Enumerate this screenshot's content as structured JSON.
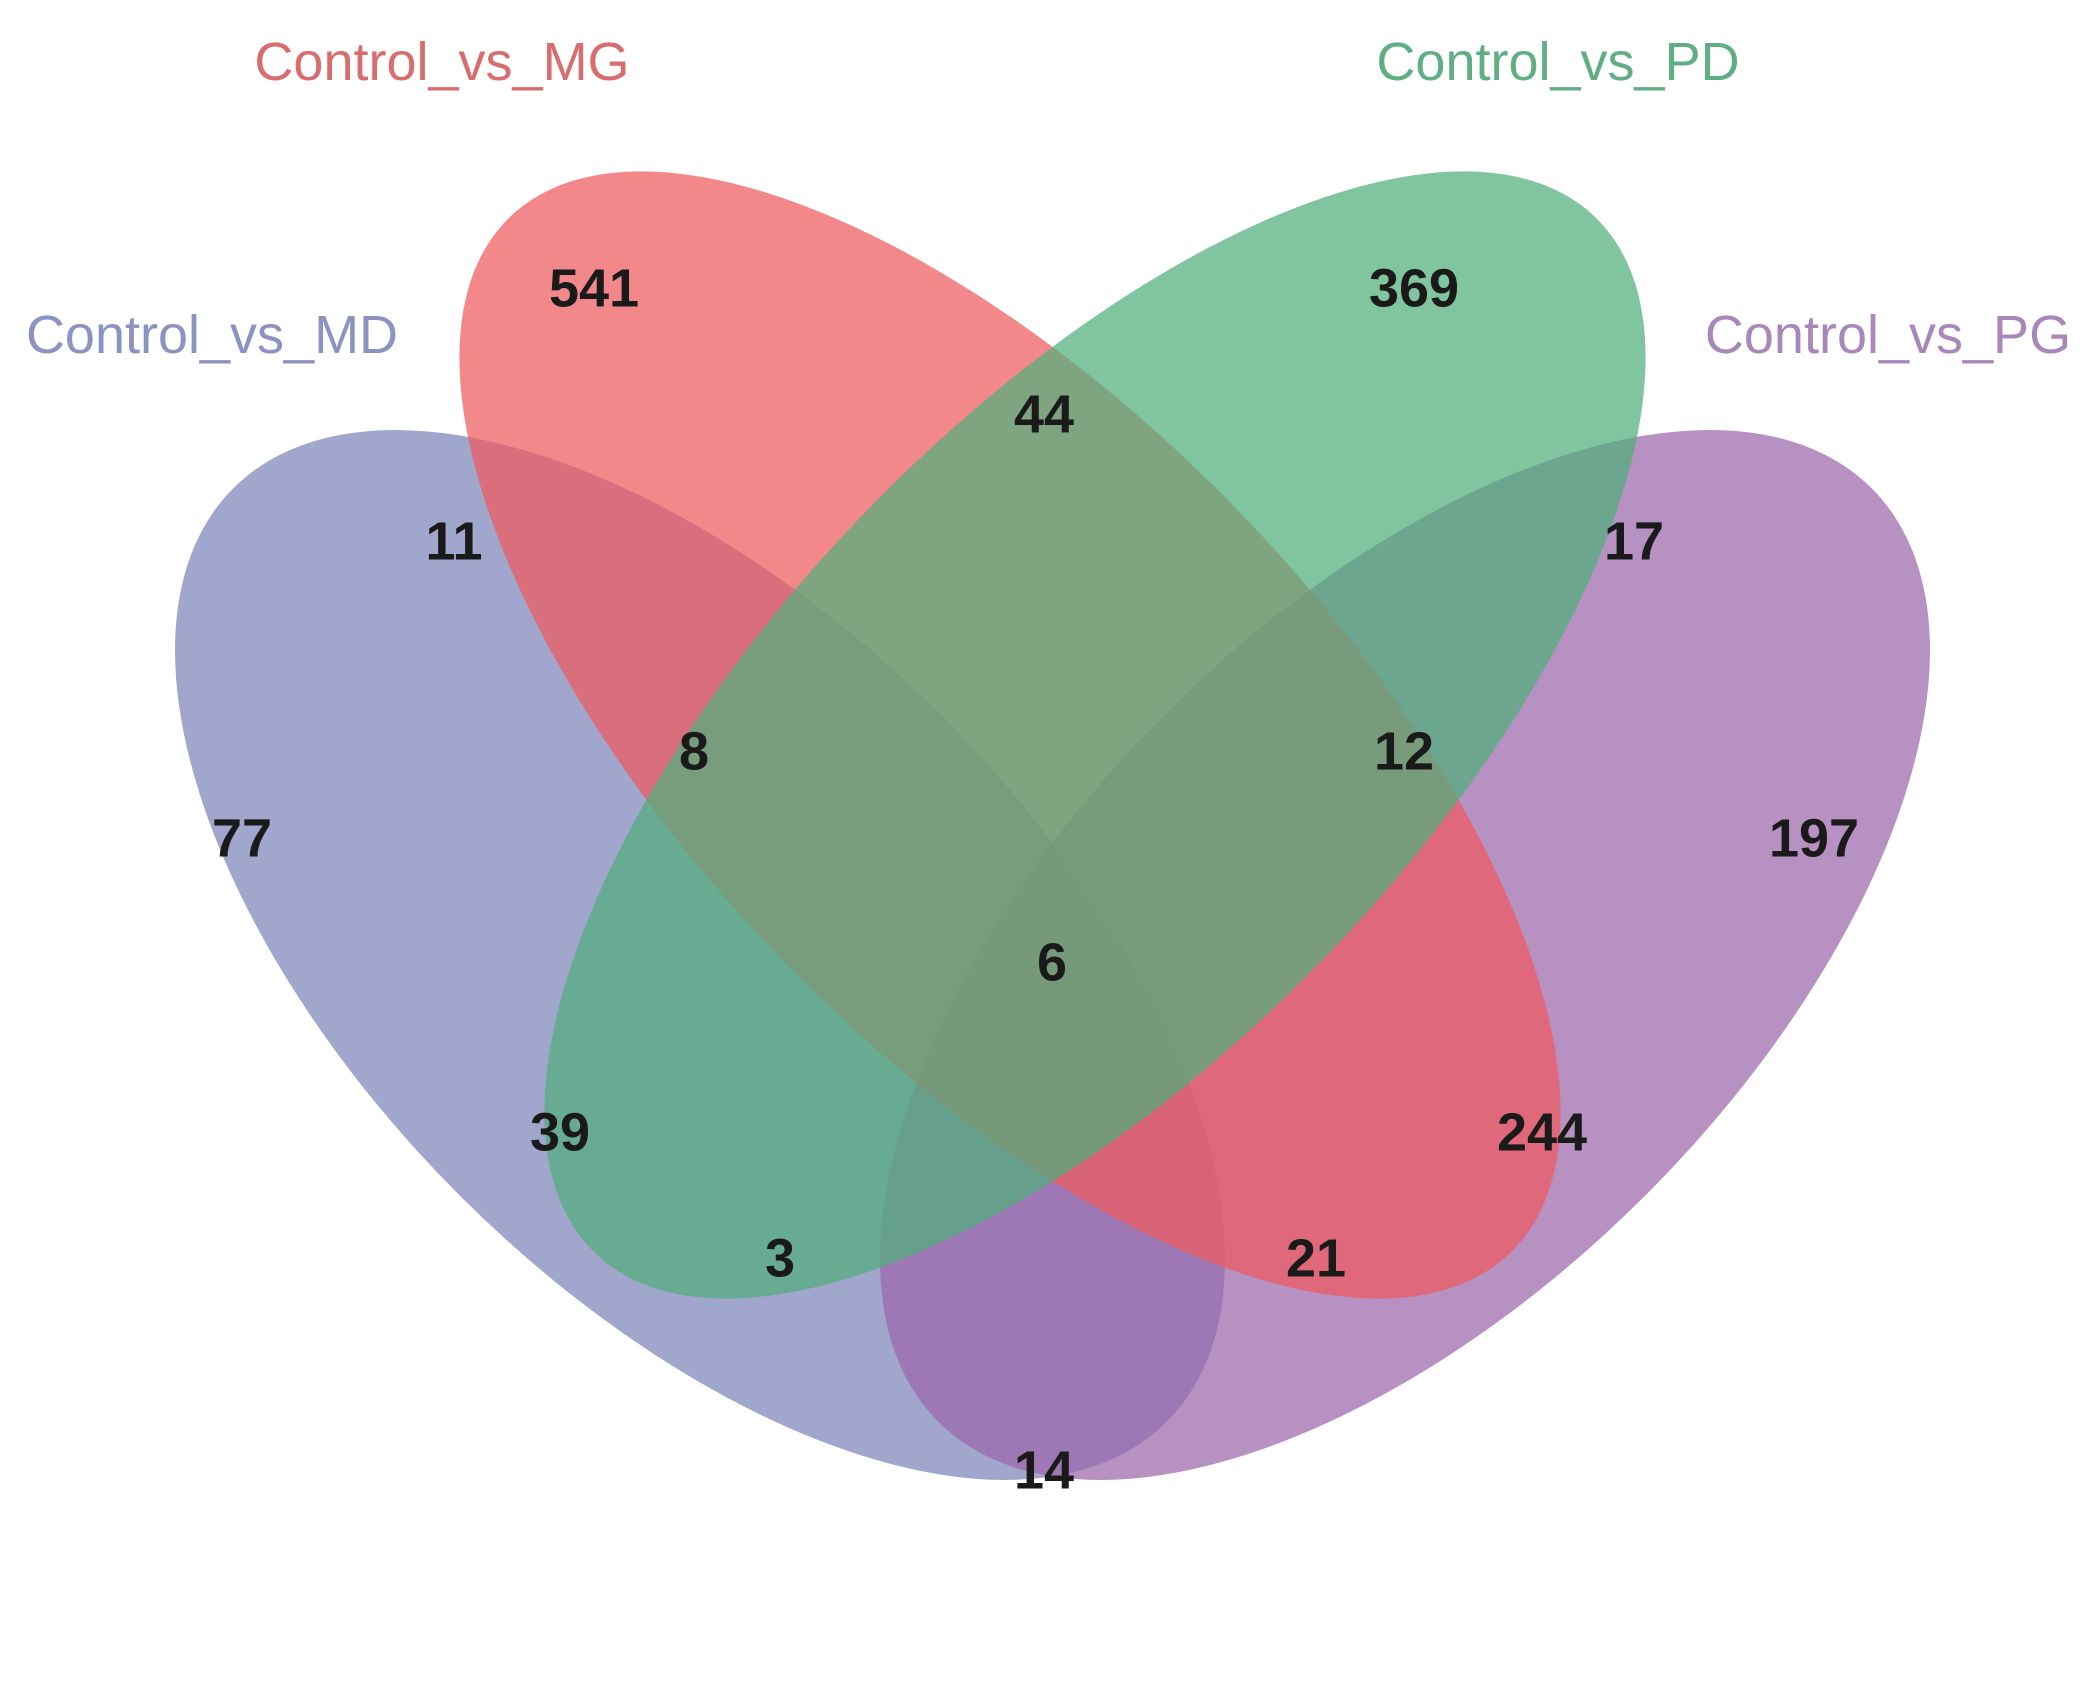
{
  "diagram": {
    "type": "venn-4-set",
    "sets": [
      {
        "key": "MD",
        "name": "Control_vs_MD",
        "color": "#7C83B8",
        "label_color": "#8C92C2"
      },
      {
        "key": "MG",
        "name": "Control_vs_MG",
        "color": "#EE5A5E",
        "label_color": "#D96C6E"
      },
      {
        "key": "PD",
        "name": "Control_vs_PD",
        "color": "#50AE7C",
        "label_color": "#5FAE84"
      },
      {
        "key": "PG",
        "name": "Control_vs_PG",
        "color": "#9B67AA",
        "label_color": "#A888B9"
      }
    ],
    "regions": [
      {
        "id": "MD",
        "value": "77"
      },
      {
        "id": "MG",
        "value": "541"
      },
      {
        "id": "PD",
        "value": "369"
      },
      {
        "id": "PG",
        "value": "197"
      },
      {
        "id": "MD_MG",
        "value": "11"
      },
      {
        "id": "MG_PD",
        "value": "44"
      },
      {
        "id": "PD_PG",
        "value": "17"
      },
      {
        "id": "MD_MG_PD",
        "value": "8"
      },
      {
        "id": "MG_PD_PG",
        "value": "12"
      },
      {
        "id": "MD_MG_PD_PG",
        "value": "6"
      },
      {
        "id": "MD_PD",
        "value": "39"
      },
      {
        "id": "MG_PG",
        "value": "244"
      },
      {
        "id": "MD_PD_PG",
        "value": "3"
      },
      {
        "id": "MD_MG_PG",
        "value": "21"
      },
      {
        "id": "MD_PG",
        "value": "14"
      }
    ]
  }
}
